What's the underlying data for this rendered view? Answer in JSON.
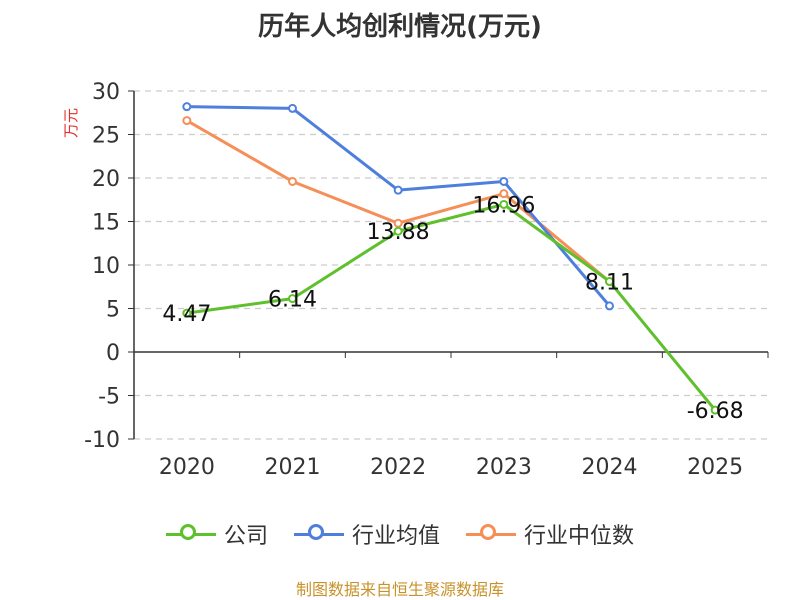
{
  "source_note": "制图数据来自恒生聚源数据库",
  "chart_data": {
    "type": "line",
    "title": "历年人均创利情况(万元)",
    "ylabel": "万元",
    "xlabel": "",
    "categories": [
      "2020",
      "2021",
      "2022",
      "2023",
      "2024",
      "2025"
    ],
    "ylim": [
      -10,
      30
    ],
    "yticks": [
      30,
      25,
      20,
      15,
      10,
      5,
      0,
      -5,
      -10
    ],
    "grid": true,
    "legend_position": "bottom",
    "series": [
      {
        "name": "公司",
        "color": "#5ec02c",
        "values": [
          4.47,
          6.14,
          13.88,
          16.96,
          8.11,
          -6.68
        ],
        "labels": [
          "4.47",
          "6.14",
          "13.88",
          "16.96",
          "8.11",
          "-6.68"
        ]
      },
      {
        "name": "行业均值",
        "color": "#4f7fdd",
        "values": [
          28.2,
          28.0,
          18.6,
          19.6,
          5.3,
          null
        ]
      },
      {
        "name": "行业中位数",
        "color": "#f58f57",
        "values": [
          26.6,
          19.6,
          14.8,
          18.2,
          8.1,
          null
        ]
      }
    ]
  }
}
